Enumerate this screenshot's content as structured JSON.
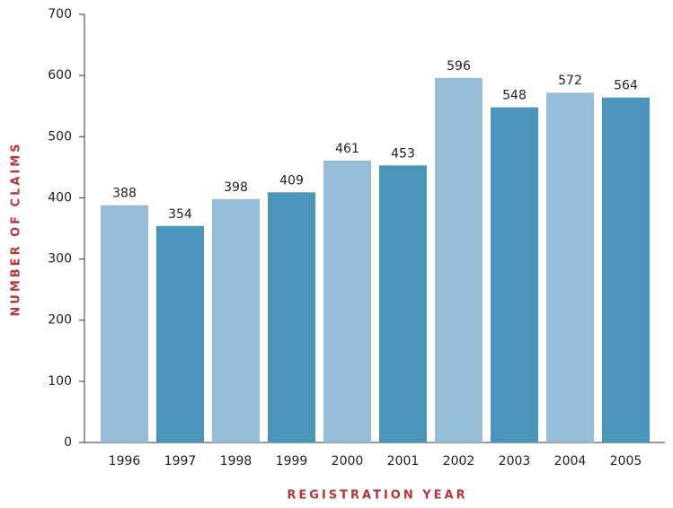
{
  "chart_data": {
    "type": "bar",
    "x_label": "REGISTRATION YEAR",
    "y_label": "NUMBER OF CLAIMS",
    "categories": [
      "1996",
      "1997",
      "1998",
      "1999",
      "2000",
      "2001",
      "2002",
      "2003",
      "2004",
      "2005"
    ],
    "values": [
      388,
      354,
      398,
      409,
      461,
      453,
      596,
      548,
      572,
      564
    ],
    "colors": [
      "#97bdd6",
      "#4b95ba",
      "#97bdd6",
      "#4b95ba",
      "#97bdd6",
      "#4b95ba",
      "#97bdd6",
      "#4b95ba",
      "#97bdd6",
      "#4b95ba"
    ],
    "ylim": [
      0,
      700
    ],
    "yticks": [
      0,
      100,
      200,
      300,
      400,
      500,
      600,
      700
    ],
    "grid": false
  }
}
